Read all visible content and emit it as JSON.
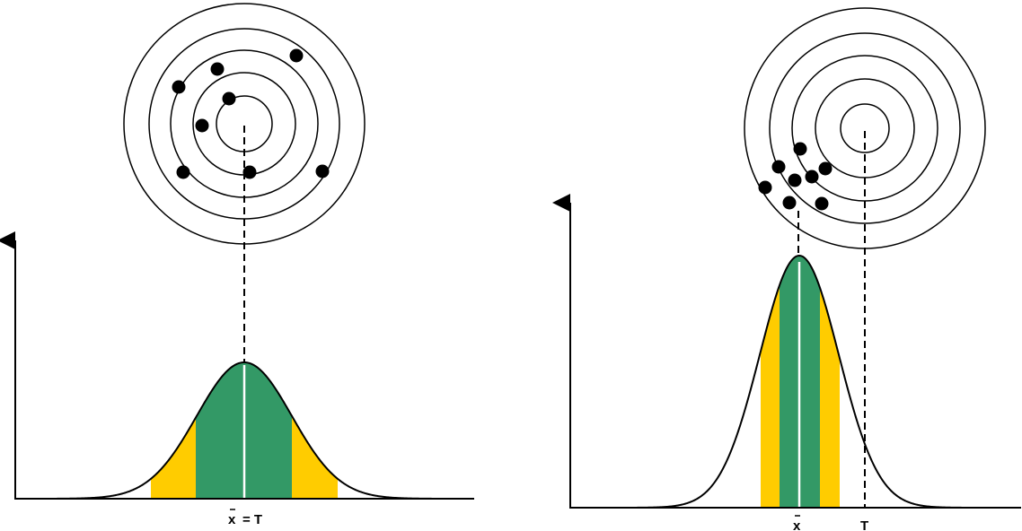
{
  "colors": {
    "outer_band": "#FFCC00",
    "inner_band": "#339966",
    "line": "#000000",
    "mean_line": "#ffffff"
  },
  "panels": [
    {
      "id": "left",
      "description_label": "x̄ = T",
      "label_mean": "x",
      "label_eq": "= T",
      "dots": 8
    },
    {
      "id": "right",
      "label_mean": "x",
      "label_target": "T",
      "dots": 8
    }
  ]
}
